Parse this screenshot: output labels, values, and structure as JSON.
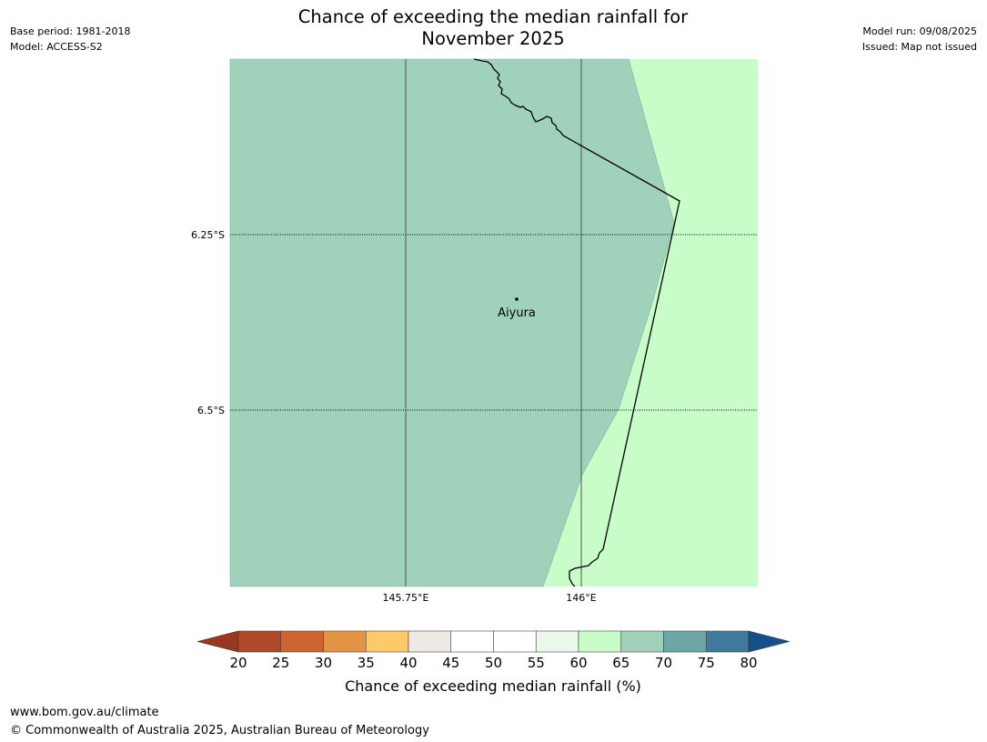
{
  "header": {
    "base_period": "Base period: 1981-2018",
    "model": "Model: ACCESS-S2",
    "model_run": "Model run: 09/08/2025",
    "issued": "Issued: Map not issued",
    "title_line1": "Chance of exceeding the median rainfall for",
    "title_line2": "November 2025"
  },
  "map": {
    "background_color": "#c8fcc8",
    "region_color": "#9fd1bb",
    "longitude_labels": [
      "145.75°E",
      "146°E"
    ],
    "latitude_labels": [
      "6.25°S",
      "6.5°S"
    ],
    "place": {
      "name": "Aiyura"
    }
  },
  "colorbar": {
    "ticks": [
      "20",
      "25",
      "30",
      "35",
      "40",
      "45",
      "50",
      "55",
      "60",
      "65",
      "70",
      "75",
      "80"
    ],
    "colors": [
      "#b0482a",
      "#cd6331",
      "#e39444",
      "#fec966",
      "#ede9e4",
      "#ffffff",
      "#ffffff",
      "#ebf7eb",
      "#c8fcc8",
      "#9fd1bb",
      "#6ea5a7",
      "#41799b"
    ],
    "under_color": "#983822",
    "over_color": "#164f8a",
    "label": "Chance of exceeding median rainfall (%)"
  },
  "footer": {
    "website": "www.bom.gov.au/climate",
    "copyright": "© Commonwealth of Australia 2025, Australian Bureau of Meteorology"
  }
}
